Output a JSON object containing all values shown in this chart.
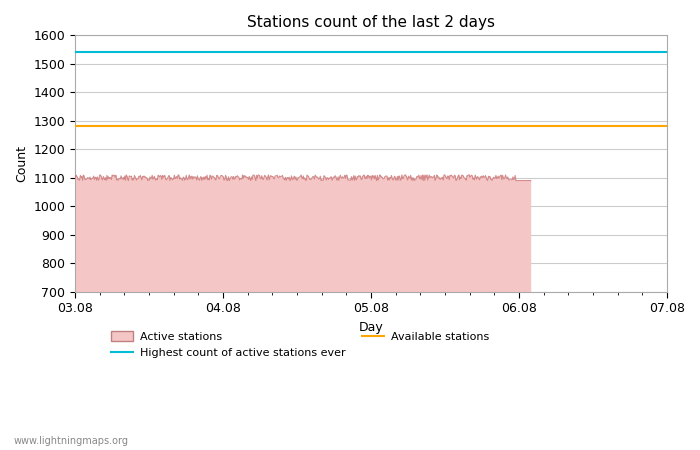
{
  "title": "Stations count of the last 2 days",
  "xlabel": "Day",
  "ylabel": "Count",
  "ylim": [
    700,
    1600
  ],
  "yticks": [
    700,
    800,
    900,
    1000,
    1100,
    1200,
    1300,
    1400,
    1500,
    1600
  ],
  "x_start": 0,
  "x_end": 96,
  "x_ticks_labels": [
    "03.08",
    "04.08",
    "05.08",
    "06.08",
    "07.08"
  ],
  "x_ticks_positions": [
    0,
    24,
    48,
    72,
    96
  ],
  "active_station_base": 1100,
  "active_data_end_x": 74,
  "active_drop_value": 1090,
  "highest_ever_value": 1543,
  "available_stations_value": 1280,
  "fill_color": "#f5c6c6",
  "fill_edge_color": "#d08080",
  "highest_line_color": "#00bcd4",
  "available_line_color": "#ffa500",
  "background_color": "#ffffff",
  "grid_color": "#cccccc",
  "watermark": "www.lightningmaps.org",
  "title_fontsize": 11,
  "axis_label_fontsize": 9,
  "tick_fontsize": 9,
  "legend_fontsize": 8
}
